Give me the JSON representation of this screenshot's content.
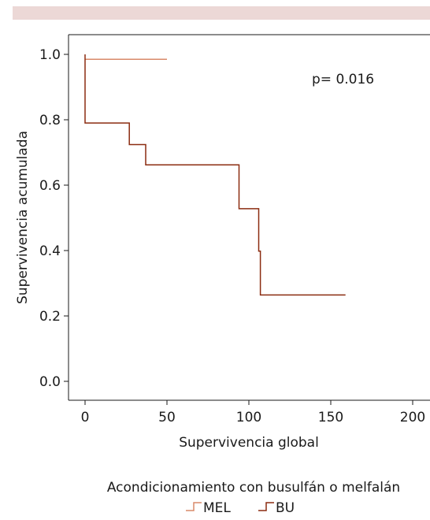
{
  "chart_data": {
    "type": "line",
    "step": true,
    "xlabel": "Supervivencia global",
    "ylabel": "Supervivencia acumulada",
    "xlim": [
      -5,
      205
    ],
    "ylim": [
      -0.06,
      1.05
    ],
    "xticks": [
      0,
      50,
      100,
      150,
      200
    ],
    "yticks": [
      0.0,
      0.2,
      0.4,
      0.6,
      0.8,
      1.0
    ],
    "xtick_labels": [
      "0",
      "50",
      "100",
      "150",
      "200"
    ],
    "ytick_labels": [
      "0.0",
      "0.2",
      "0.4",
      "0.6",
      "0.8",
      "1.0"
    ],
    "annotation": "p= 0.016",
    "legend": {
      "title": "Acondicionamiento con busulfán o melfalán",
      "placement": "bottom"
    },
    "series": [
      {
        "name": "MEL",
        "color": "#d98a6a",
        "x": [
          0,
          50
        ],
        "y": [
          0.985,
          0.985
        ]
      },
      {
        "name": "BU",
        "color": "#8b2c10",
        "x": [
          0,
          0,
          27,
          27,
          37,
          37,
          94,
          94,
          106,
          106,
          107,
          107,
          159
        ],
        "y": [
          1.0,
          0.79,
          0.79,
          0.724,
          0.724,
          0.662,
          0.662,
          0.528,
          0.528,
          0.398,
          0.398,
          0.264,
          0.264
        ]
      }
    ]
  }
}
